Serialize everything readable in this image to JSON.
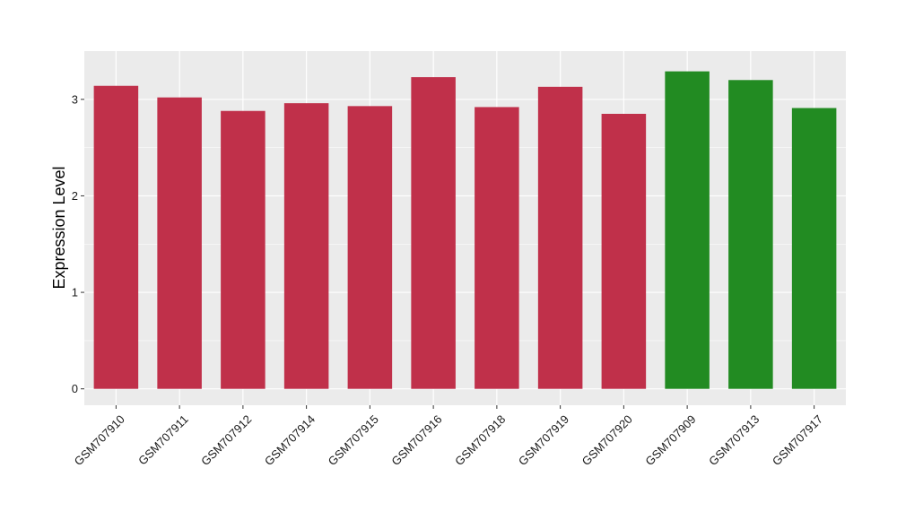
{
  "chart_data": {
    "type": "bar",
    "title": "",
    "xlabel": "",
    "ylabel": "Expression Level",
    "ylim": [
      -0.17,
      3.5
    ],
    "yticks": [
      0,
      1,
      2,
      3
    ],
    "ytick_labels": [
      "0",
      "1",
      "2",
      "3"
    ],
    "grid": true,
    "legend": "none",
    "categories": [
      "GSM707910",
      "GSM707911",
      "GSM707912",
      "GSM707914",
      "GSM707915",
      "GSM707916",
      "GSM707918",
      "GSM707919",
      "GSM707920",
      "GSM707909",
      "GSM707913",
      "GSM707917"
    ],
    "values": [
      3.14,
      3.02,
      2.88,
      2.96,
      2.93,
      3.23,
      2.92,
      3.13,
      2.85,
      3.29,
      3.2,
      2.91
    ],
    "bar_colors": [
      "#c0304a",
      "#c0304a",
      "#c0304a",
      "#c0304a",
      "#c0304a",
      "#c0304a",
      "#c0304a",
      "#c0304a",
      "#c0304a",
      "#228b22",
      "#228b22",
      "#228b22"
    ],
    "panel_background": "#ebebeb",
    "grid_color": "#ffffff"
  }
}
